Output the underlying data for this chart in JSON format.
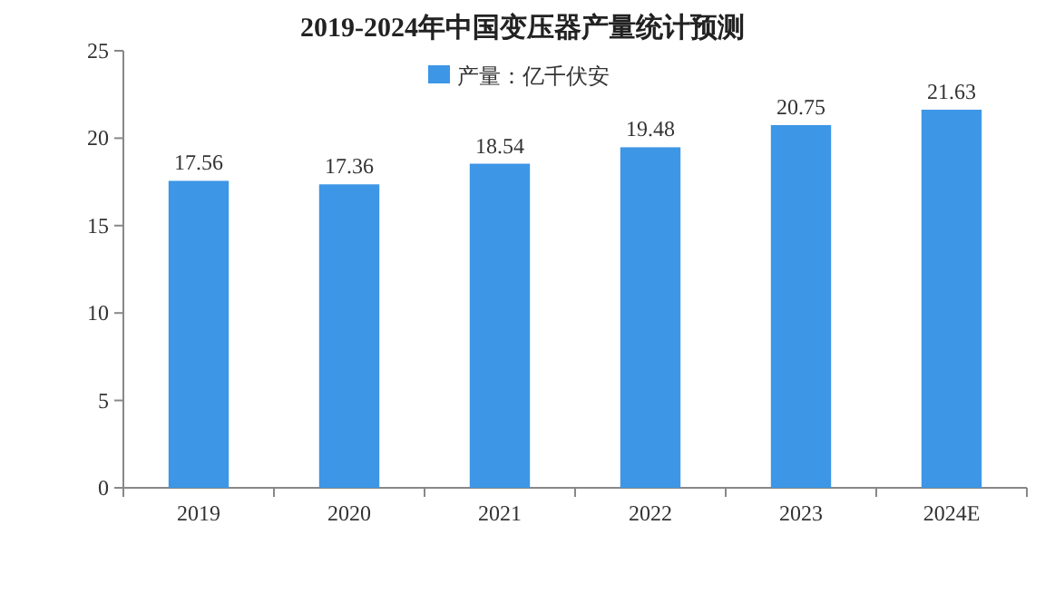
{
  "chart_data": {
    "type": "bar",
    "title": "2019-2024年中国变压器产量统计预测",
    "categories": [
      "2019",
      "2020",
      "2021",
      "2022",
      "2023",
      "2024E"
    ],
    "series": [
      {
        "name": "产量：亿千伏安",
        "color": "#3d96e6",
        "values": [
          17.56,
          17.36,
          18.54,
          19.48,
          20.75,
          21.63
        ]
      }
    ],
    "ylim": [
      0,
      25
    ],
    "yticks": [
      0,
      5,
      10,
      15,
      20,
      25
    ],
    "data_labels": true,
    "legend": "top"
  }
}
